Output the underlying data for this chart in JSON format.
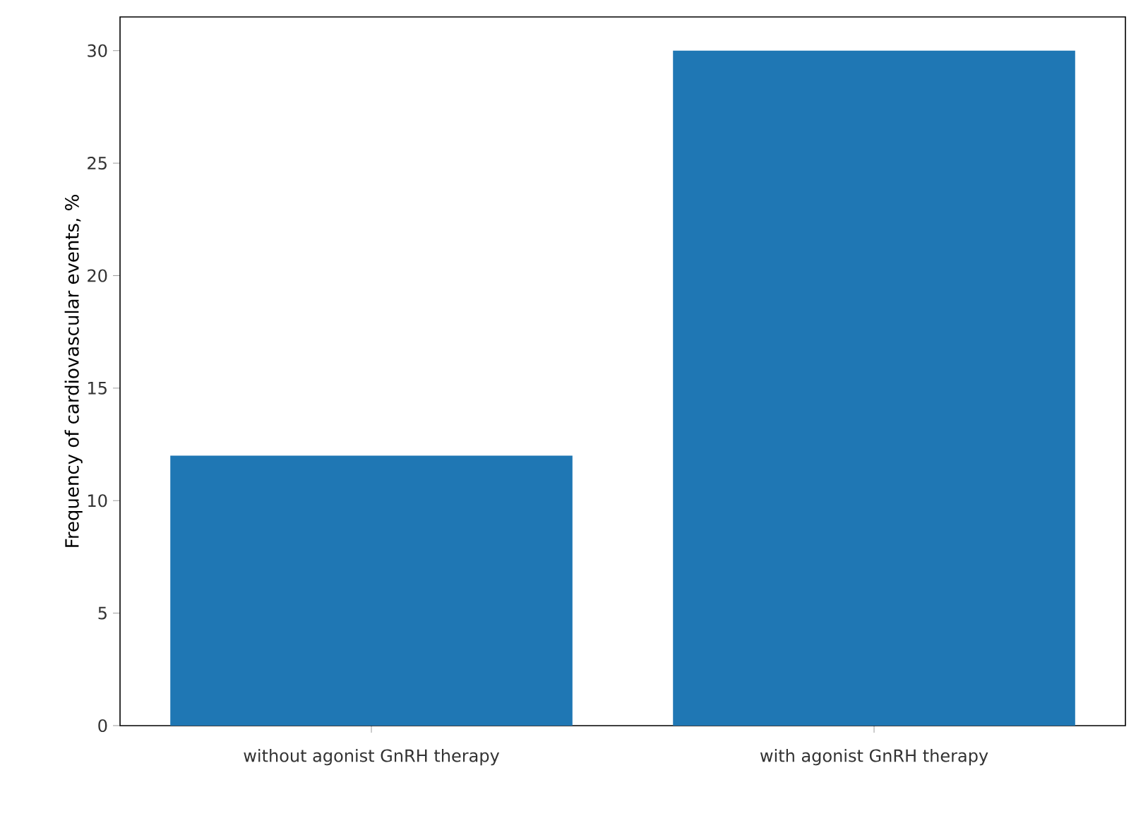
{
  "chart_data": {
    "type": "bar",
    "ylabel": "Frequency of cardiovascular events, %",
    "categories": [
      "without agonist GnRH therapy",
      "with agonist GnRH therapy"
    ],
    "values": [
      12,
      30
    ],
    "color": "#1f77b4",
    "ylim": [
      0,
      31.5
    ],
    "yticks": [
      0,
      5,
      10,
      15,
      20,
      25,
      30
    ]
  }
}
